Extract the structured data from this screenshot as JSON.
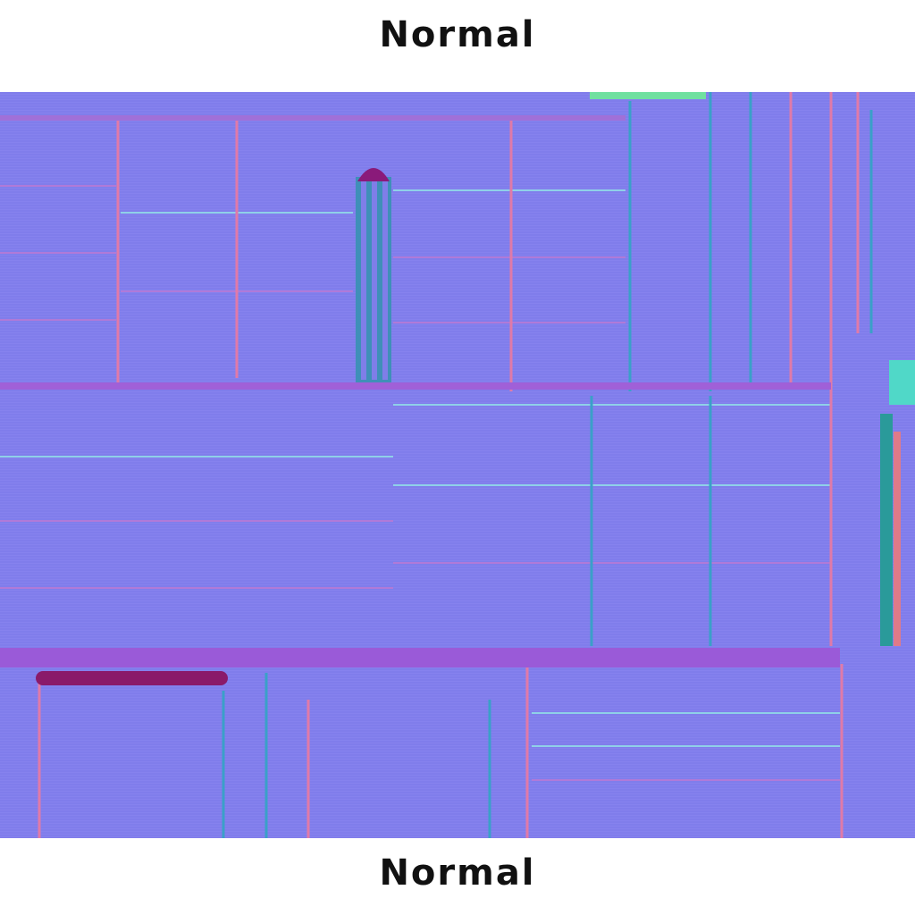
{
  "header": {
    "title": "Normal"
  },
  "footer": {
    "caption": "Normal"
  }
}
